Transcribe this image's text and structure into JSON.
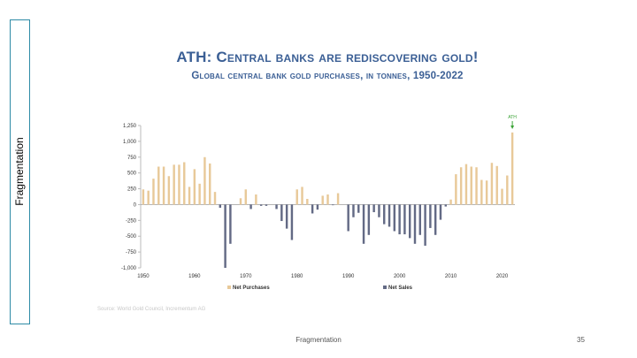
{
  "sidebar": {
    "label": "Fragmentation"
  },
  "slide": {
    "footer": "Fragmentation",
    "page_number": "35",
    "source": "Source: World Gold Council, Incrementum AG"
  },
  "colors": {
    "purchases": "#e8c999",
    "sales": "#636a85",
    "ath": "#3aa335",
    "title": "#3b5f95"
  },
  "chart_data": {
    "type": "bar",
    "title": "ATH: Central banks are rediscovering gold!",
    "subtitle": "Global central bank gold purchases, in tonnes, 1950-2022",
    "annotation": "ATH",
    "ylim": [
      -1000,
      1250
    ],
    "yticks": [
      "1,250",
      "1,000",
      "750",
      "500",
      "250",
      "0",
      "-250",
      "-500",
      "-750",
      "-1,000"
    ],
    "ytick_values": [
      1250,
      1000,
      750,
      500,
      250,
      0,
      -250,
      -500,
      -750,
      -1000
    ],
    "xticks": [
      "1950",
      "1960",
      "1970",
      "1980",
      "1990",
      "2000",
      "2010",
      "2020"
    ],
    "xtick_values": [
      1950,
      1960,
      1970,
      1980,
      1990,
      2000,
      2010,
      2020
    ],
    "legend": [
      "Net Purchases",
      "Net Sales"
    ],
    "series": [
      {
        "name": "Net Purchases",
        "x": [
          1950,
          1951,
          1952,
          1953,
          1954,
          1955,
          1956,
          1957,
          1958,
          1959,
          1960,
          1961,
          1962,
          1963,
          1964,
          1965,
          1966,
          1967,
          1968,
          1969,
          1970,
          1971,
          1972,
          1973,
          1974,
          1975,
          1976,
          1977,
          1978,
          1979,
          1980,
          1981,
          1982,
          1983,
          1984,
          1985,
          1986,
          1987,
          1988,
          1989,
          1990,
          1991,
          1992,
          1993,
          1994,
          1995,
          1996,
          1997,
          1998,
          1999,
          2000,
          2001,
          2002,
          2003,
          2004,
          2005,
          2006,
          2007,
          2008,
          2009,
          2010,
          2011,
          2012,
          2013,
          2014,
          2015,
          2016,
          2017,
          2018,
          2019,
          2020,
          2021,
          2022
        ],
        "values": [
          240,
          220,
          410,
          600,
          600,
          450,
          630,
          630,
          670,
          280,
          560,
          330,
          750,
          650,
          200,
          0,
          0,
          0,
          0,
          100,
          240,
          0,
          160,
          0,
          0,
          0,
          0,
          0,
          0,
          0,
          240,
          280,
          90,
          0,
          0,
          140,
          160,
          0,
          180,
          0,
          0,
          0,
          0,
          0,
          0,
          0,
          0,
          0,
          0,
          0,
          0,
          0,
          0,
          0,
          0,
          0,
          0,
          0,
          0,
          0,
          80,
          480,
          590,
          640,
          600,
          590,
          390,
          380,
          660,
          610,
          250,
          460,
          1140
        ]
      },
      {
        "name": "Net Sales",
        "values": [
          0,
          0,
          0,
          0,
          0,
          0,
          0,
          0,
          0,
          0,
          0,
          0,
          0,
          0,
          0,
          -50,
          -1000,
          -620,
          0,
          0,
          0,
          -70,
          0,
          -20,
          -20,
          0,
          -70,
          -260,
          -380,
          -560,
          0,
          0,
          0,
          -140,
          -80,
          0,
          0,
          -10,
          0,
          0,
          -420,
          -200,
          -130,
          -620,
          -480,
          -120,
          -200,
          -310,
          -350,
          -420,
          -470,
          -470,
          -530,
          -620,
          -480,
          -650,
          -370,
          -480,
          -240,
          -30,
          0,
          0,
          0,
          0,
          0,
          0,
          0,
          0,
          0,
          0,
          0,
          0,
          0
        ]
      }
    ]
  }
}
